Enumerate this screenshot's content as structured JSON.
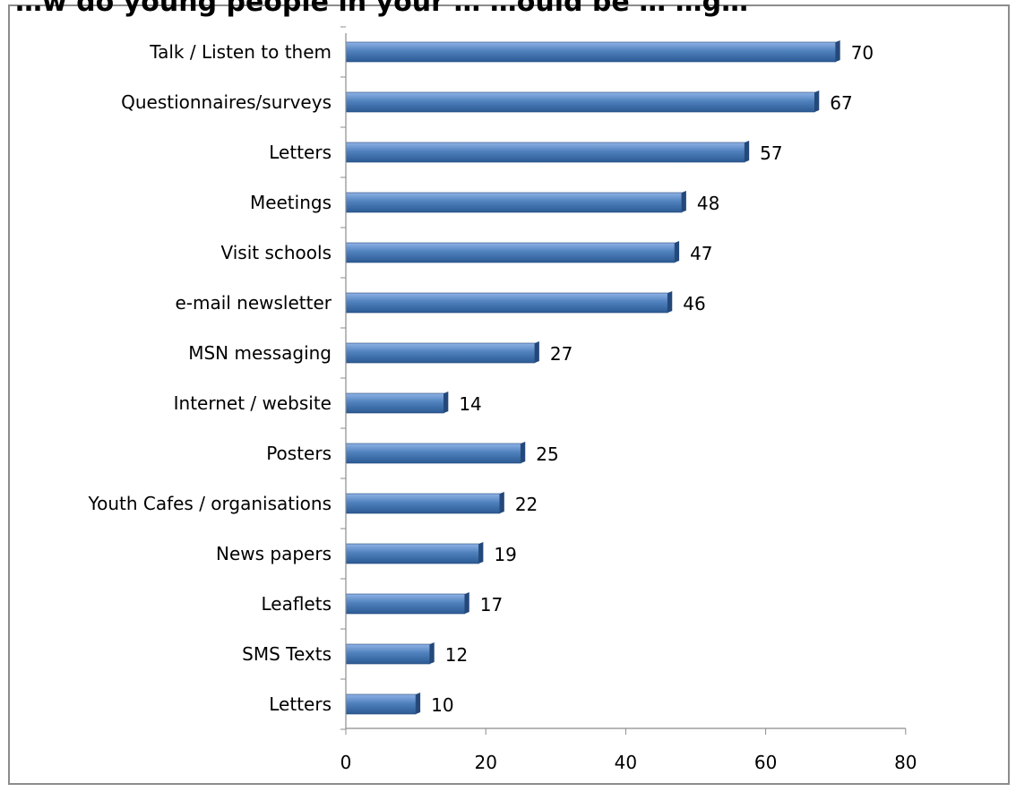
{
  "chart_data": {
    "type": "bar",
    "orientation": "horizontal",
    "title": "…w do young people in your … …ould be … …g…",
    "categories": [
      "Talk / Listen to them",
      "Questionnaires/surveys",
      "Letters",
      "Meetings",
      "Visit schools",
      "e-mail newsletter",
      "MSN messaging",
      "Internet / website",
      "Posters",
      "Youth Cafes / organisations",
      "News papers",
      "Leaflets",
      "SMS Texts",
      "Letters"
    ],
    "values": [
      70,
      67,
      57,
      48,
      47,
      46,
      27,
      14,
      25,
      22,
      19,
      17,
      12,
      10
    ],
    "data_labels": [
      "70",
      "67",
      "57",
      "48",
      "47",
      "46",
      "27",
      "14",
      "25",
      "22",
      "19",
      "17",
      "12",
      "10"
    ],
    "xlim": [
      0,
      80
    ],
    "xticks": [
      0,
      20,
      40,
      60,
      80
    ],
    "xtick_labels": [
      "0",
      "20",
      "40",
      "60",
      "80"
    ],
    "xlabel": "",
    "ylabel": "",
    "grid": false,
    "legend": "none",
    "colors": {
      "bar_top": "#8fb3e6",
      "bar_mid": "#4f81bd",
      "bar_bottom": "#2c5a93",
      "bar_side": "#24487a",
      "axis": "#8c8c8c",
      "frame": "#8c8c8c"
    }
  }
}
